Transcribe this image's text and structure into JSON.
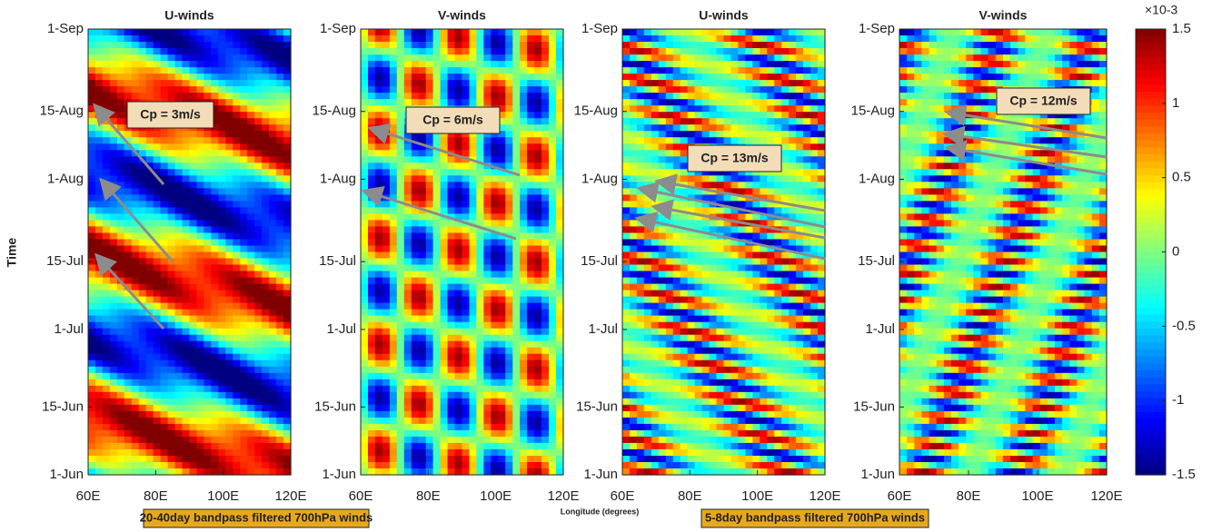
{
  "chart_data": [
    {
      "type": "heatmap",
      "title": "U-winds",
      "ylabel": "Time",
      "xlim": [
        60,
        120
      ],
      "xticks": [
        {
          "value": 60,
          "label": "60E"
        },
        {
          "value": 80,
          "label": "80E"
        },
        {
          "value": 100,
          "label": "100E"
        },
        {
          "value": 120,
          "label": "120E"
        }
      ],
      "ylim": [
        0,
        92
      ],
      "yticks": [
        {
          "value": 0,
          "label": "1-Jun"
        },
        {
          "value": 14,
          "label": "15-Jun"
        },
        {
          "value": 30,
          "label": "1-Jul"
        },
        {
          "value": 44,
          "label": "15-Jul"
        },
        {
          "value": 61,
          "label": "1-Aug"
        },
        {
          "value": 75,
          "label": "15-Aug"
        },
        {
          "value": 92,
          "label": "1-Sep"
        }
      ],
      "annotation": "Cp = 3m/s"
    },
    {
      "type": "heatmap",
      "title": "V-winds",
      "xlim": [
        60,
        120
      ],
      "xticks": [
        {
          "value": 60,
          "label": "60E"
        },
        {
          "value": 80,
          "label": "80E"
        },
        {
          "value": 100,
          "label": "100E"
        },
        {
          "value": 120,
          "label": "120E"
        }
      ],
      "ylim": [
        0,
        92
      ],
      "yticks": [
        {
          "value": 0,
          "label": "1-Jun"
        },
        {
          "value": 14,
          "label": "15-Jun"
        },
        {
          "value": 30,
          "label": "1-Jul"
        },
        {
          "value": 44,
          "label": "15-Jul"
        },
        {
          "value": 61,
          "label": "1-Aug"
        },
        {
          "value": 75,
          "label": "15-Aug"
        },
        {
          "value": 92,
          "label": "1-Sep"
        }
      ],
      "annotation": "Cp = 6m/s"
    },
    {
      "type": "heatmap",
      "title": "U-winds",
      "xlim": [
        60,
        120
      ],
      "xticks": [
        {
          "value": 60,
          "label": "60E"
        },
        {
          "value": 80,
          "label": "80E"
        },
        {
          "value": 100,
          "label": "100E"
        },
        {
          "value": 120,
          "label": "120E"
        }
      ],
      "ylim": [
        0,
        92
      ],
      "yticks": [
        {
          "value": 0,
          "label": "1-Jun"
        },
        {
          "value": 14,
          "label": "15-Jun"
        },
        {
          "value": 30,
          "label": "1-Jul"
        },
        {
          "value": 44,
          "label": "15-Jul"
        },
        {
          "value": 61,
          "label": "1-Aug"
        },
        {
          "value": 75,
          "label": "15-Aug"
        },
        {
          "value": 92,
          "label": "1-Sep"
        }
      ],
      "annotation": "Cp = 13m/s"
    },
    {
      "type": "heatmap",
      "title": "V-winds",
      "xlim": [
        60,
        120
      ],
      "xticks": [
        {
          "value": 60,
          "label": "60E"
        },
        {
          "value": 80,
          "label": "80E"
        },
        {
          "value": 100,
          "label": "100E"
        },
        {
          "value": 120,
          "label": "120E"
        }
      ],
      "ylim": [
        0,
        92
      ],
      "yticks": [
        {
          "value": 0,
          "label": "1-Jun"
        },
        {
          "value": 14,
          "label": "15-Jun"
        },
        {
          "value": 30,
          "label": "1-Jul"
        },
        {
          "value": 44,
          "label": "15-Jul"
        },
        {
          "value": 61,
          "label": "1-Aug"
        },
        {
          "value": 75,
          "label": "15-Aug"
        },
        {
          "value": 92,
          "label": "1-Sep"
        }
      ],
      "annotation": "Cp = 12m/s"
    }
  ],
  "colorbar": {
    "clim": [
      -1.5,
      1.5
    ],
    "ticks": [
      1.5,
      1,
      0.5,
      0,
      -0.5,
      -1,
      -1.5
    ],
    "scale_label": "×10-3"
  },
  "xlabel": "Longitude (degrees)",
  "footer_left": "20-40day bandpass filtered 700hPa winds",
  "footer_right": "5-8day bandpass filtered 700hPa winds"
}
